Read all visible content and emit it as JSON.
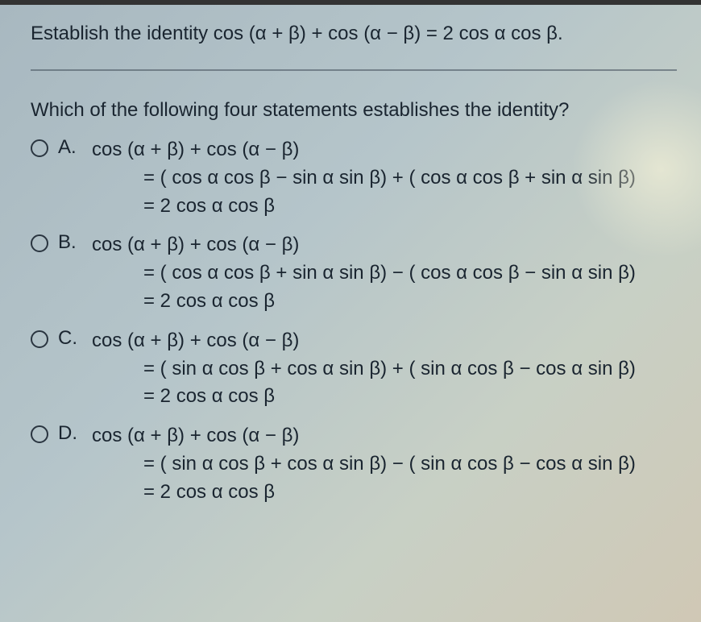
{
  "prompt": "Establish the identity cos (α + β) + cos (α − β) = 2 cos α cos β.",
  "question": "Which of the following four statements establishes the identity?",
  "options": [
    {
      "letter": "A.",
      "line1": "cos (α + β) + cos (α − β)",
      "line2": "= ( cos α cos β − sin α sin β) + ( cos α cos β + sin α sin β)",
      "line3": "= 2 cos α cos β"
    },
    {
      "letter": "B.",
      "line1": "cos (α + β) + cos (α − β)",
      "line2": "= ( cos α cos β + sin α sin β) − ( cos α cos β − sin α sin β)",
      "line3": "= 2 cos α cos β"
    },
    {
      "letter": "C.",
      "line1": "cos (α + β) + cos (α − β)",
      "line2": "= ( sin α cos β + cos α sin β) + ( sin α cos β − cos α sin β)",
      "line3": "= 2 cos α cos β"
    },
    {
      "letter": "D.",
      "line1": "cos (α + β) + cos (α − β)",
      "line2": "= ( sin α cos β + cos α sin β) − ( sin α cos β − cos α sin β)",
      "line3": "= 2 cos α cos β"
    }
  ]
}
